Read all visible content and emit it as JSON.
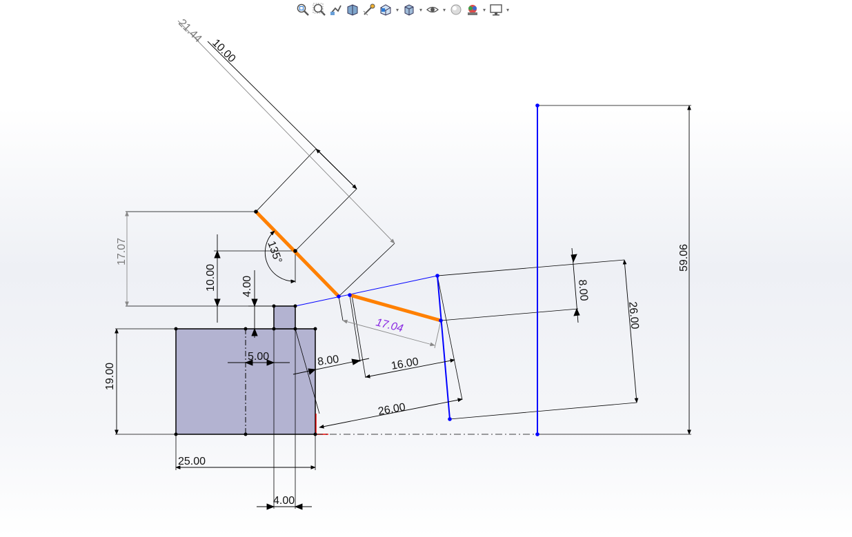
{
  "toolbar": {
    "items": [
      {
        "name": "zoom-to-fit-icon"
      },
      {
        "name": "zoom-to-area-icon"
      },
      {
        "name": "previous-view-icon"
      },
      {
        "name": "section-view-icon"
      },
      {
        "name": "dynamic-annotation-icon"
      },
      {
        "name": "view-orientation-icon",
        "dropdown": true
      },
      {
        "name": "display-style-icon",
        "dropdown": true
      },
      {
        "name": "hide-show-items-icon",
        "dropdown": true
      },
      {
        "name": "edit-appearance-icon"
      },
      {
        "name": "apply-scene-icon",
        "dropdown": true
      },
      {
        "name": "view-settings-icon",
        "dropdown": true
      }
    ]
  },
  "dimensions": {
    "d_21_44": "21.44",
    "d_10_00_top": "10.00",
    "d_17_07": "17.07",
    "d_10_00_left": "10.00",
    "d_4_00_top": "4.00",
    "d_135": "135°",
    "d_17_04": "17.04",
    "d_8_00_right": "8.00",
    "d_26_00_right": "26.00",
    "d_59_06": "59.06",
    "d_19_00": "19.00",
    "d_5_00": "5.00",
    "d_8_00_mid": "8.00",
    "d_16_00": "16.00",
    "d_26_00_bottom": "26.00",
    "d_25_00": "25.00",
    "d_4_00_bottom": "4.00"
  },
  "colors": {
    "part_fill": "#b3b3d1",
    "orange_line": "#ff8000",
    "blue_line": "#0000ff",
    "driven_dim": "#8a2be2"
  }
}
